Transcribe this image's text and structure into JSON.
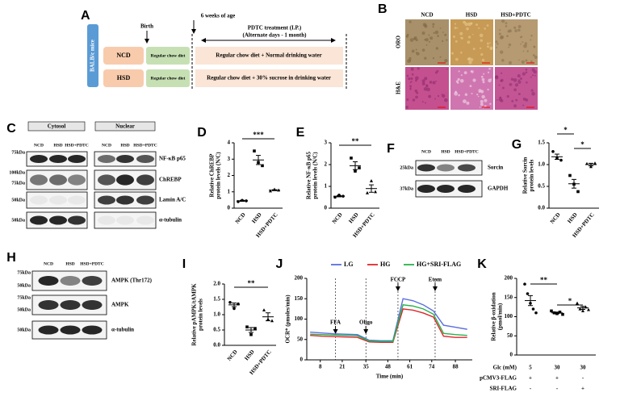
{
  "panels": {
    "A": {
      "label": "A",
      "birth": "Birth",
      "age": "6 weeks of age",
      "treatment": "PDTC treatment (I.P.)",
      "schedule": "(Alternate days - 1 month)",
      "mice": "BALB/c mice",
      "groups": [
        {
          "name": "NCD",
          "diet": "Regular chow diet",
          "treatment": "Regular chow diet + Normal drinking water"
        },
        {
          "name": "HSD",
          "diet": "Regular chow diet",
          "treatment": "Regular chow diet + 30% sucrose in drinking water"
        }
      ]
    },
    "B": {
      "label": "B",
      "columns": [
        "NCD",
        "HSD",
        "HSD+PDTC"
      ],
      "rows": [
        "ORO",
        "H&E"
      ]
    },
    "C": {
      "label": "C",
      "fractions": [
        "Cytosol",
        "Nuclear"
      ],
      "lanes": [
        "NCD",
        "HSD",
        "HSD+PDTC"
      ],
      "markers": [
        "75kDa",
        "100kDa",
        "75kDa",
        "50kDa",
        "50kDa"
      ],
      "proteins": [
        "NF-κB p65",
        "ChREBP",
        "Lamin A/C",
        "α-tubulin"
      ]
    },
    "F": {
      "label": "F",
      "lanes": [
        "NCD",
        "HSD",
        "HSD+PDTC"
      ],
      "markers": [
        "25kDa",
        "37kDa"
      ],
      "proteins": [
        "Sorcin",
        "GAPDH"
      ]
    },
    "H": {
      "label": "H",
      "lanes": [
        "NCD",
        "HSD",
        "HSD+PDTC"
      ],
      "markers": [
        "75kDa",
        "50kDa",
        "75kDa",
        "50kDa",
        "50kDa"
      ],
      "proteins": [
        "AMPK (Thr172)",
        "AMPK",
        "α-tubulin"
      ]
    }
  },
  "chart_data": [
    {
      "type": "dot",
      "label": "D",
      "ylabel": [
        "Relative ChREBP",
        "protein levels (N/C)"
      ],
      "categories": [
        "NCD",
        "HSD",
        "HSD+PDTC"
      ],
      "values": [
        0.45,
        2.95,
        1.1
      ],
      "errors": [
        0.03,
        0.28,
        0.03
      ],
      "points": [
        [
          0.4,
          0.48,
          0.45
        ],
        [
          3.5,
          2.8,
          2.6
        ],
        [
          1.05,
          1.15,
          1.1
        ]
      ],
      "ylim": [
        0,
        4
      ],
      "yticks": [
        0,
        1,
        2,
        3,
        4
      ],
      "annotations": [
        "***"
      ]
    },
    {
      "type": "dot",
      "label": "E",
      "ylabel": [
        "Relative NF-κB p65",
        "protein levels (N/C)"
      ],
      "categories": [
        "NCD",
        "HSD",
        "HSD+PDTC"
      ],
      "values": [
        0.55,
        1.95,
        0.9
      ],
      "errors": [
        0.03,
        0.18,
        0.17
      ],
      "points": [
        [
          0.5,
          0.6,
          0.55
        ],
        [
          2.3,
          1.7,
          1.85
        ],
        [
          0.7,
          1.25,
          0.75
        ]
      ],
      "ylim": [
        0,
        3
      ],
      "yticks": [
        0,
        1,
        2,
        3
      ],
      "annotations": [
        "**"
      ]
    },
    {
      "type": "dot",
      "label": "G",
      "ylabel": [
        "Relative Sorcin",
        "protein levels"
      ],
      "categories": [
        "NCD",
        "HSD",
        "HSD+PDTC"
      ],
      "values": [
        1.18,
        0.56,
        1.0
      ],
      "errors": [
        0.06,
        0.1,
        0.03
      ],
      "points": [
        [
          1.3,
          1.15,
          1.1
        ],
        [
          0.75,
          0.55,
          0.38
        ],
        [
          1.02,
          0.95,
          1.03
        ]
      ],
      "ylim": [
        0,
        1.5
      ],
      "yticks": [
        {
          "value": 0,
          "label": "0.0"
        },
        {
          "value": 0.5,
          "label": "0.5"
        },
        {
          "value": 1,
          "label": "1.0"
        },
        {
          "value": 1.5,
          "label": "1.5"
        }
      ],
      "annotations": [
        "*",
        "*"
      ]
    },
    {
      "type": "dot",
      "label": "I",
      "ylabel": [
        "Relative pAMPK/tAMPK",
        "protein levels"
      ],
      "categories": [
        "NCD",
        "HSD",
        "HSD+PDTC"
      ],
      "values": [
        1.32,
        0.5,
        0.93
      ],
      "errors": [
        0.06,
        0.08,
        0.13
      ],
      "points": [
        [
          1.4,
          1.2,
          1.35
        ],
        [
          0.6,
          0.35,
          0.55
        ],
        [
          1.15,
          0.85,
          0.8
        ]
      ],
      "ylim": [
        0,
        2
      ],
      "yticks": [
        {
          "value": 0,
          "label": "0.0"
        },
        {
          "value": 0.5,
          "label": "0.5"
        },
        {
          "value": 1,
          "label": "1.0"
        },
        {
          "value": 1.5,
          "label": "1.5"
        },
        {
          "value": 2,
          "label": "2.0"
        }
      ],
      "annotations": [
        "**"
      ]
    },
    {
      "type": "line",
      "label": "J",
      "ylabel": "OCR* (pmoles/min)",
      "xlabel": "Time (min)",
      "x": [
        2,
        9,
        16,
        23,
        30,
        37,
        44,
        51,
        57,
        63,
        69,
        75,
        81,
        88,
        95
      ],
      "series": [
        {
          "name": "LG",
          "color": "#5b6ee1",
          "values": [
            68,
            66,
            64,
            63,
            62,
            48,
            47,
            47,
            150,
            145,
            135,
            120,
            85,
            80,
            75
          ]
        },
        {
          "name": "HG",
          "color": "#e0262b",
          "values": [
            60,
            58,
            57,
            56,
            55,
            44,
            43,
            43,
            125,
            122,
            115,
            105,
            58,
            55,
            55
          ]
        },
        {
          "name": "HG+SRI-FLAG",
          "color": "#27b34a",
          "values": [
            63,
            62,
            61,
            60,
            59,
            46,
            45,
            45,
            135,
            132,
            125,
            112,
            65,
            62,
            60
          ]
        }
      ],
      "xlim": [
        0,
        98
      ],
      "xticks": [
        8,
        21,
        35,
        48,
        61,
        74,
        88
      ],
      "ylim": [
        0,
        200
      ],
      "yticks": [
        0,
        50,
        100,
        150,
        200
      ],
      "events": [
        {
          "label": "FFA",
          "x": 17
        },
        {
          "label": "Oligo",
          "x": 35
        },
        {
          "label": "FCCP",
          "x": 54
        },
        {
          "label": "Etom",
          "x": 76
        }
      ]
    },
    {
      "type": "dot",
      "label": "K",
      "ylabel": [
        "Relative β-oxidation",
        "(pmol/min)"
      ],
      "values": [
        142,
        110,
        123
      ],
      "errors": [
        13,
        2,
        4
      ],
      "points": [
        [
          185,
          160,
          135,
          120,
          110
        ],
        [
          115,
          110,
          108,
          112,
          106
        ],
        [
          135,
          120,
          115,
          125,
          118
        ]
      ],
      "ylim": [
        0,
        200
      ],
      "yticks": [
        0,
        50,
        100,
        150,
        200
      ],
      "annotations": [
        "**",
        "*"
      ],
      "table": {
        "rows": [
          [
            "Glc (mM)",
            "5",
            "30",
            "30"
          ],
          [
            "pCMV3-FLAG",
            "+",
            "+",
            "-"
          ],
          [
            "SRI-FLAG",
            "-",
            "-",
            "+"
          ]
        ]
      }
    }
  ]
}
